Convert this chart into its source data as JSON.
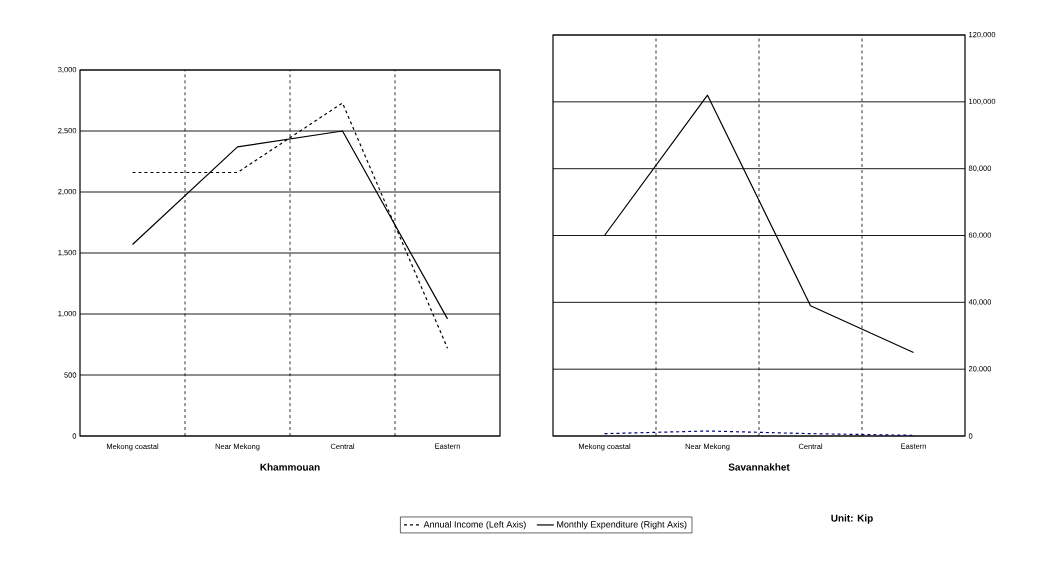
{
  "chart_data": [
    {
      "type": "line",
      "xlabel": "Khammouan",
      "categories": [
        "Mekong coastal",
        "Near Mekong",
        "Central",
        "Eastern"
      ],
      "series": [
        {
          "name": "Annual Income (Left Axis)",
          "color": "#000000",
          "line_style": "dashed",
          "values": [
            2160,
            2160,
            2730,
            720
          ]
        },
        {
          "name": "Monthly Expenditure (Right Axis)",
          "color": "#000000",
          "line_style": "solid",
          "values": [
            1570,
            2370,
            2500,
            960
          ]
        }
      ],
      "ylim": [
        0,
        3000
      ],
      "yticks": [
        0,
        500,
        {
          "value": 1000,
          "label": "1,000"
        },
        {
          "value": 1500,
          "label": "1,500"
        },
        {
          "value": 2000,
          "label": "2,000"
        },
        {
          "value": 2500,
          "label": "2,500"
        },
        {
          "value": 3000,
          "label": "3,000"
        }
      ],
      "grid": true,
      "legend": "bottom",
      "annotations": [
        "Unit: Kip"
      ]
    },
    {
      "type": "line",
      "xlabel": "Savannakhet",
      "categories": [
        "Mekong coastal",
        "Near Mekong",
        "Central",
        "Eastern"
      ],
      "series": [
        {
          "color": "#000080",
          "line_style": "dashed",
          "axis": "y2",
          "values": [
            700,
            1500,
            700,
            200
          ]
        },
        {
          "color": "#000000",
          "line_style": "solid",
          "axis": "y2",
          "values": [
            60000,
            102000,
            39000,
            25000
          ]
        }
      ],
      "y2lim": [
        0,
        120000
      ],
      "y2ticks": [
        0,
        {
          "value": 20000,
          "label": "20,000"
        },
        {
          "value": 40000,
          "label": "40,000"
        },
        {
          "value": 60000,
          "label": "60,000"
        },
        {
          "value": 80000,
          "label": "80,000"
        },
        {
          "value": 100000,
          "label": "100,000"
        },
        {
          "value": 120000,
          "label": "120,000"
        }
      ],
      "grid": true
    }
  ]
}
